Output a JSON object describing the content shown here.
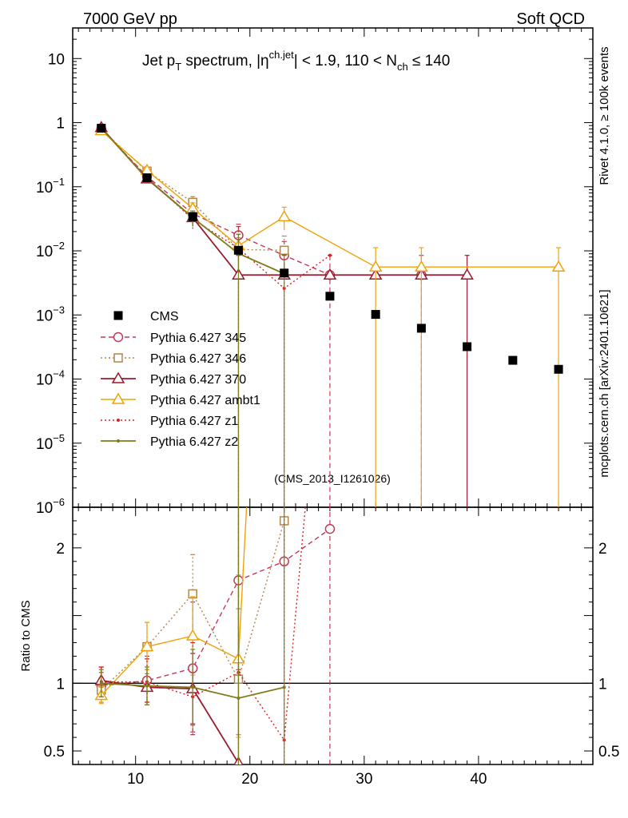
{
  "header": {
    "left": "7000 GeV pp",
    "right": "Soft QCD"
  },
  "side": {
    "rivet": "Rivet 4.1.0, ≥ 100k events",
    "mcplots": "mcplots.cern.ch [arXiv:2401.10621]"
  },
  "chart_data": {
    "type": "scatter",
    "title": {
      "t1": "Jet p",
      "t1sub": "T",
      "t2": " spectrum, |η",
      "t2sup": "ch.jet",
      "t3": "| < 1.9, 110 < N",
      "t3sub": "ch",
      "t4": " ≤ 140"
    },
    "analysis": "(CMS_2013_I1261026)",
    "xlabel": "",
    "ylabel_ratio": "Ratio to CMS",
    "xlim": [
      4.5,
      50
    ],
    "ylim_main": [
      1e-06,
      30
    ],
    "ylim_ratio": [
      0.4,
      2.3
    ],
    "x_ticks": [
      10,
      20,
      30,
      40
    ],
    "x_ticklabels": [
      "10",
      "20",
      "30",
      "40"
    ],
    "y_main_ticks": [
      {
        "exp": 1,
        "label": "10"
      },
      {
        "exp": 0,
        "label": "1"
      },
      {
        "exp": -1,
        "label": "10",
        "sup": "−1"
      },
      {
        "exp": -2,
        "label": "10",
        "sup": "−2"
      },
      {
        "exp": -3,
        "label": "10",
        "sup": "−3"
      },
      {
        "exp": -4,
        "label": "10",
        "sup": "−4"
      },
      {
        "exp": -5,
        "label": "10",
        "sup": "−5"
      },
      {
        "exp": -6,
        "label": "10",
        "sup": "−6"
      }
    ],
    "y_ratio_ticks": [
      {
        "v": 2,
        "label": "2"
      },
      {
        "v": 1,
        "label": "1"
      },
      {
        "v": 0.5,
        "label": "0.5"
      }
    ],
    "legend": {
      "position": "middle-left",
      "entries": [
        "CMS",
        "Pythia 6.427 345",
        "Pythia 6.427 346",
        "Pythia 6.427 370",
        "Pythia 6.427 ambt1",
        "Pythia 6.427 z1",
        "Pythia 6.427 z2"
      ]
    },
    "data": {
      "name": "CMS",
      "color": "#000000",
      "x": [
        7,
        11,
        15,
        19,
        23,
        27,
        31,
        35,
        39,
        43,
        47
      ],
      "y": [
        0.82,
        0.138,
        0.034,
        0.0102,
        0.0045,
        0.00196,
        0.00102,
        0.00062,
        0.00032,
        0.000196,
        0.000142
      ]
    },
    "series": [
      {
        "name": "Pythia 6.427 345",
        "color": "#c03a55",
        "dash": "6,4",
        "marker": "circle",
        "width": 1.4,
        "x": [
          7,
          11,
          15,
          19,
          23,
          27,
          35
        ],
        "y": [
          0.8,
          0.145,
          0.038,
          0.0175,
          0.0085,
          0.0042,
          0.0042
        ],
        "ylo": [
          0.7,
          0.125,
          0.026,
          0.011,
          0.004,
          1e-09,
          1e-09
        ],
        "yhi": [
          0.9,
          0.165,
          0.05,
          0.026,
          0.014,
          0.0085,
          0.0085
        ],
        "ratio": [
          0.98,
          1.02,
          1.11,
          1.76,
          1.9,
          2.14,
          null
        ],
        "rlo": [
          0.88,
          0.86,
          0.64,
          1.1,
          null,
          null,
          null
        ],
        "rhi": [
          1.08,
          1.2,
          1.6,
          2.5,
          null,
          null,
          null
        ]
      },
      {
        "name": "Pythia 6.427 346",
        "color": "#b0864a",
        "dash": "2,3",
        "marker": "square",
        "width": 1.4,
        "x": [
          7,
          11,
          15,
          19,
          23
        ],
        "y": [
          0.78,
          0.175,
          0.057,
          0.0105,
          0.0102
        ],
        "ylo": [
          0.69,
          0.155,
          0.044,
          0.005,
          0.004
        ],
        "yhi": [
          0.87,
          0.195,
          0.07,
          0.016,
          0.017
        ],
        "ratio": [
          0.95,
          1.27,
          1.66,
          1.03,
          2.2
        ],
        "rlo": [
          0.86,
          1.07,
          1.36,
          0.62,
          null
        ],
        "rhi": [
          1.04,
          1.45,
          1.95,
          1.55,
          null
        ]
      },
      {
        "name": "Pythia 6.427 370",
        "color": "#9a1a2e",
        "dash": "",
        "marker": "triangle",
        "width": 1.8,
        "x": [
          7,
          11,
          15,
          19,
          23,
          27,
          31,
          35,
          39
        ],
        "y": [
          0.84,
          0.133,
          0.033,
          0.0042,
          0.0042,
          0.0042,
          0.0042,
          0.0042,
          0.0042
        ],
        "ylo": [
          0.74,
          0.118,
          0.024,
          1e-09,
          null,
          null,
          null,
          null,
          1e-09
        ],
        "yhi": [
          0.94,
          0.148,
          0.042,
          0.0085,
          null,
          null,
          null,
          null,
          0.0085
        ],
        "ratio": [
          1.02,
          0.97,
          0.96,
          0.41,
          null,
          null,
          null,
          null,
          null
        ],
        "rlo": [
          0.92,
          0.84,
          0.7,
          null,
          null,
          null,
          null,
          null,
          null
        ],
        "rhi": [
          1.12,
          1.1,
          1.22,
          null,
          null,
          null,
          null,
          null,
          null
        ]
      },
      {
        "name": "Pythia 6.427 ambt1",
        "color": "#f0a20a",
        "dash": "",
        "marker": "triangle",
        "width": 1.4,
        "x": [
          7,
          11,
          15,
          19,
          23,
          31,
          35,
          47
        ],
        "y": [
          0.75,
          0.18,
          0.046,
          0.012,
          0.034,
          0.0056,
          0.0056,
          0.0056
        ],
        "ylo": [
          0.66,
          0.16,
          0.036,
          0.006,
          0.021,
          1e-09,
          1e-09,
          1e-09
        ],
        "yhi": [
          0.84,
          0.2,
          0.056,
          0.018,
          0.048,
          0.0112,
          0.0112,
          0.0112
        ],
        "ratio": [
          0.91,
          1.27,
          1.35,
          1.18,
          7.5,
          null,
          null,
          null
        ],
        "rlo": [
          0.85,
          1.1,
          1.06,
          0.6,
          null,
          null,
          null,
          null
        ],
        "rhi": [
          0.97,
          1.45,
          1.64,
          1.8,
          null,
          null,
          null,
          null
        ]
      },
      {
        "name": "Pythia 6.427 z1",
        "color": "#dd2020",
        "dash": "2,3",
        "marker": "dot",
        "width": 1.4,
        "x": [
          7,
          11,
          15,
          19,
          23,
          27
        ],
        "y": [
          0.83,
          0.14,
          0.031,
          0.011,
          0.0026,
          0.0085
        ],
        "ylo": [
          0.73,
          0.122,
          0.022,
          1e-09,
          1e-09,
          null
        ],
        "yhi": [
          0.93,
          0.158,
          0.04,
          0.024,
          0.0085,
          null
        ],
        "ratio": [
          1.01,
          1.01,
          0.9,
          1.08,
          0.58,
          4.3
        ],
        "rlo": [
          0.9,
          0.86,
          0.62,
          null,
          null,
          null
        ],
        "rhi": [
          1.12,
          1.18,
          1.3,
          null,
          null,
          null
        ]
      },
      {
        "name": "Pythia 6.427 z2",
        "color": "#7f7d1c",
        "dash": "",
        "marker": "dot",
        "width": 1.8,
        "x": [
          7,
          11,
          15,
          19,
          23
        ],
        "y": [
          0.82,
          0.135,
          0.033,
          0.0091,
          0.0044
        ],
        "ylo": [
          0.72,
          0.119,
          0.024,
          1e-09,
          1e-09
        ],
        "yhi": [
          0.92,
          0.151,
          0.042,
          0.0182,
          0.0088
        ],
        "ratio": [
          1.0,
          0.98,
          0.97,
          0.89,
          0.97
        ],
        "rlo": [
          0.9,
          0.84,
          0.69,
          null,
          null
        ],
        "rhi": [
          1.1,
          1.12,
          1.25,
          null,
          null
        ]
      }
    ]
  }
}
